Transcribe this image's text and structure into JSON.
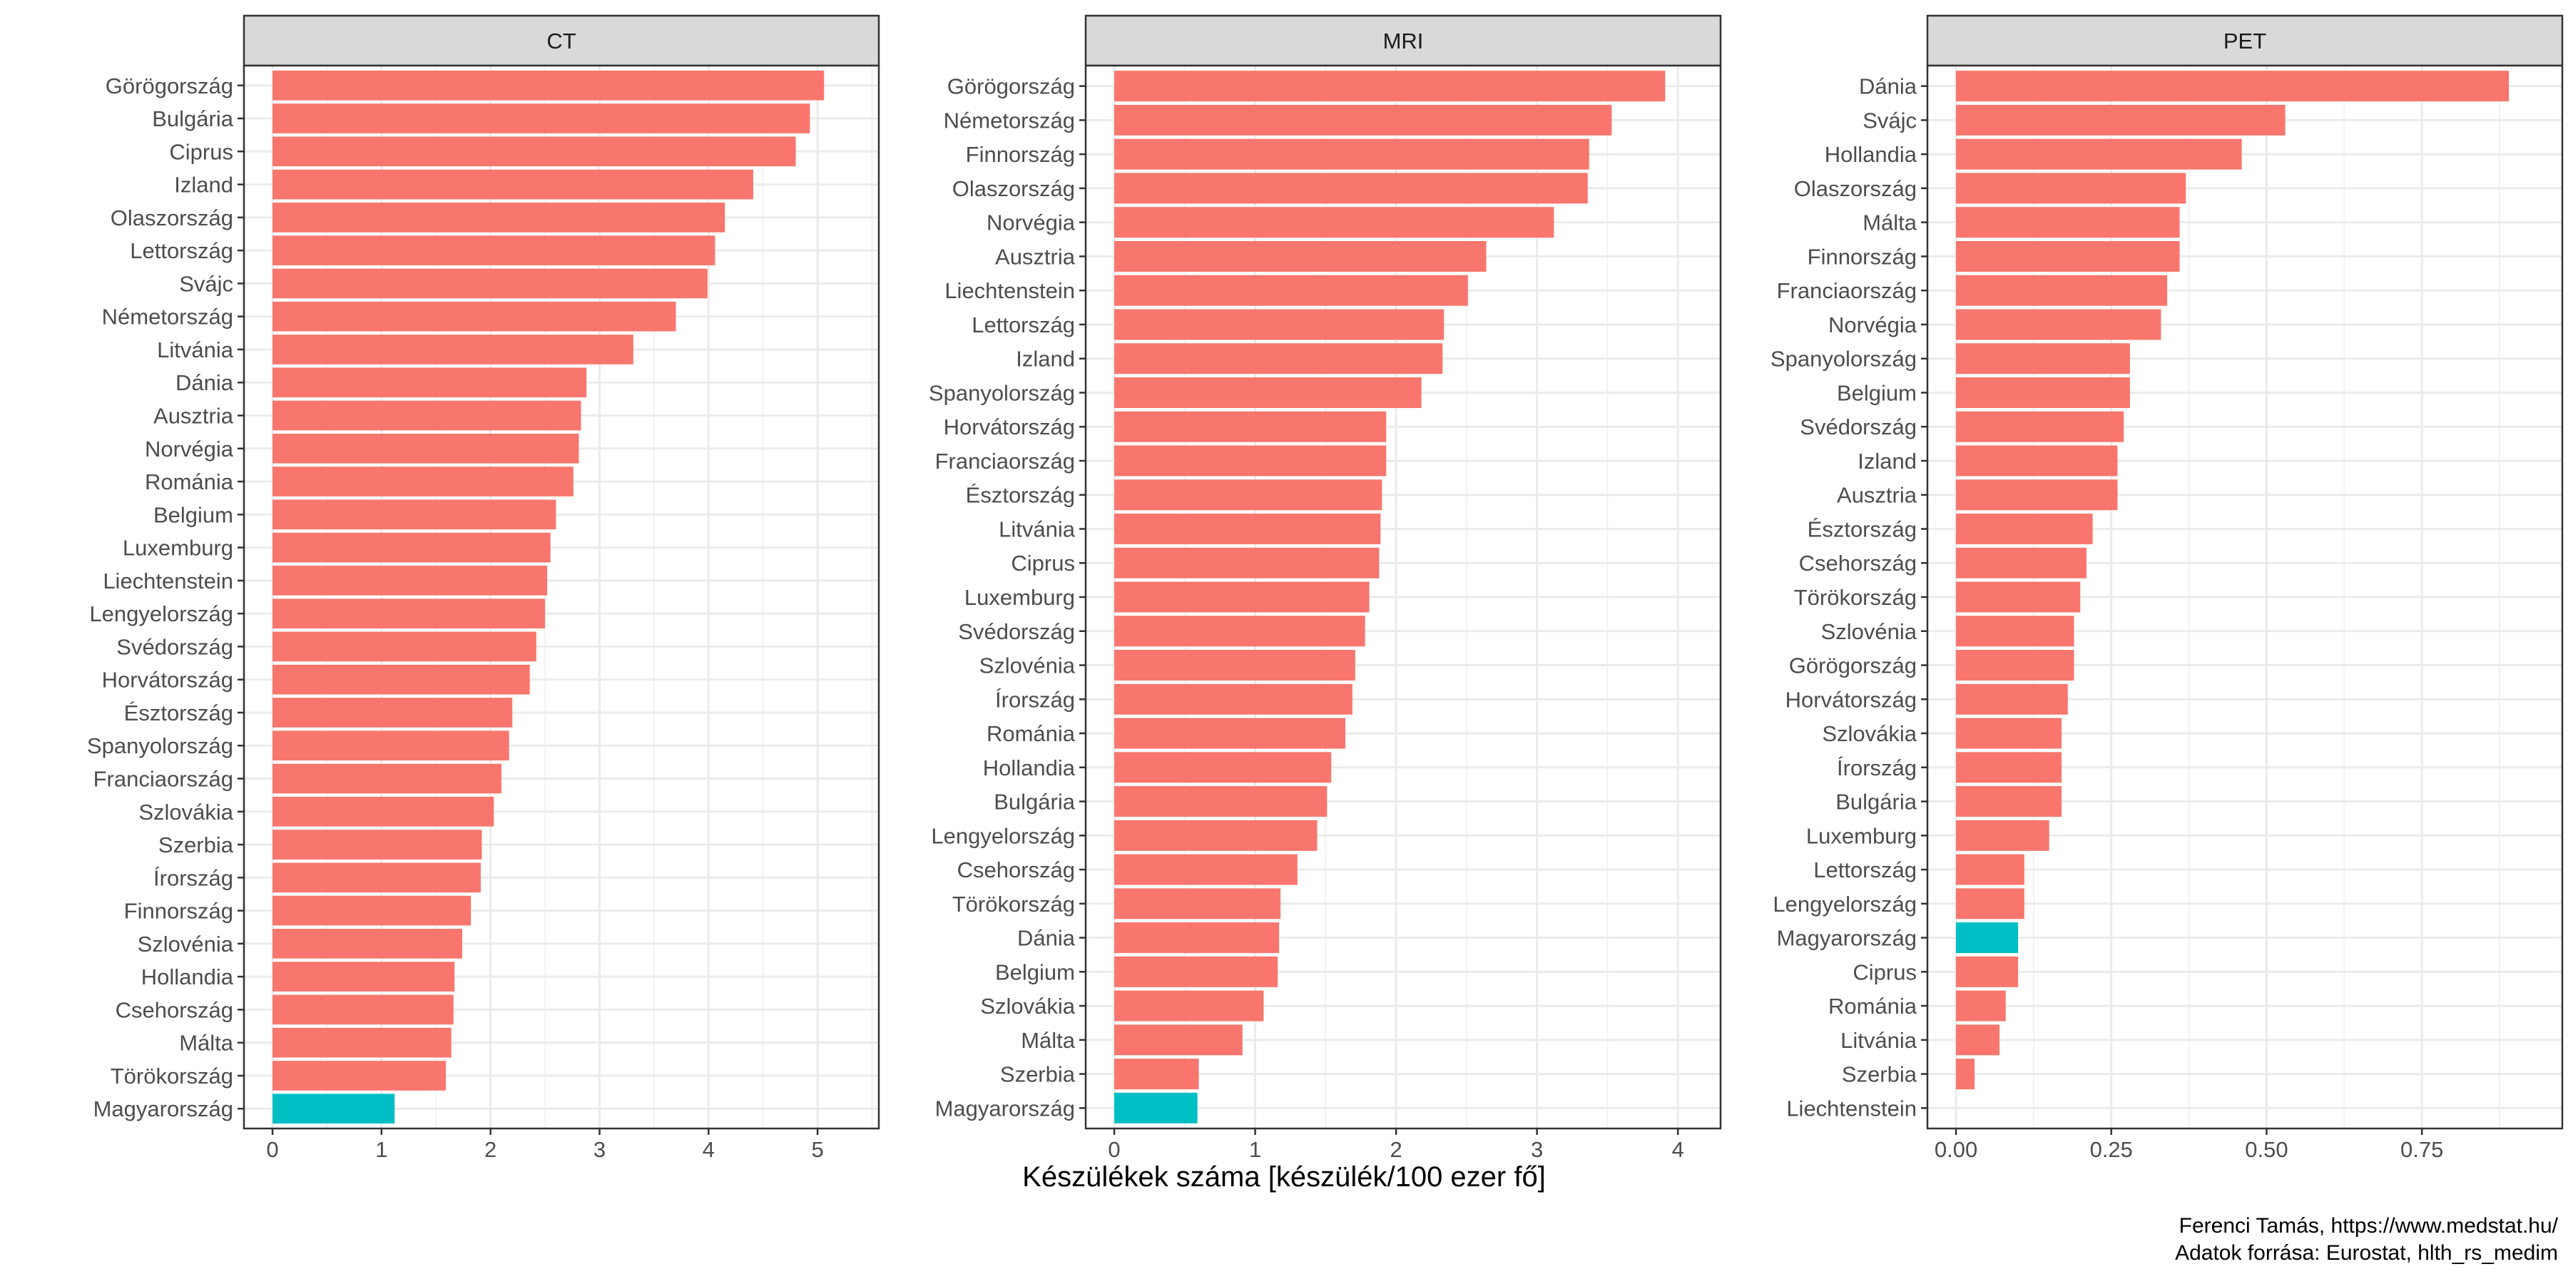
{
  "chart_data": {
    "type": "bar",
    "orientation": "horizontal",
    "xlabel": "Készülékek száma [készülék/100 ezer fő]",
    "colors": {
      "default": "#F8766D",
      "highlight": "#00BFC4"
    },
    "highlight_category": "Magyarország",
    "panels": [
      {
        "name": "CT",
        "xlim": [
          0,
          5.3
        ],
        "xticks": [
          0,
          1,
          2,
          3,
          4,
          5
        ],
        "xtick_labels": [
          "0",
          "1",
          "2",
          "3",
          "4",
          "5"
        ],
        "categories": [
          "Görögország",
          "Bulgária",
          "Ciprus",
          "Izland",
          "Olaszország",
          "Lettország",
          "Svájc",
          "Németország",
          "Litvánia",
          "Dánia",
          "Ausztria",
          "Norvégia",
          "Románia",
          "Belgium",
          "Luxemburg",
          "Liechtenstein",
          "Lengyelország",
          "Svédország",
          "Horvátország",
          "Észtország",
          "Spanyolország",
          "Franciaország",
          "Szlovákia",
          "Szerbia",
          "Írország",
          "Finnország",
          "Szlovénia",
          "Hollandia",
          "Csehország",
          "Málta",
          "Törökország",
          "Magyarország"
        ],
        "values": [
          5.06,
          4.93,
          4.8,
          4.41,
          4.15,
          4.06,
          3.99,
          3.7,
          3.31,
          2.88,
          2.83,
          2.81,
          2.76,
          2.6,
          2.55,
          2.52,
          2.5,
          2.42,
          2.36,
          2.2,
          2.17,
          2.1,
          2.03,
          1.92,
          1.91,
          1.82,
          1.74,
          1.67,
          1.66,
          1.64,
          1.59,
          1.12
        ]
      },
      {
        "name": "MRI",
        "xlim": [
          0,
          4.1
        ],
        "xticks": [
          0,
          1,
          2,
          3,
          4
        ],
        "xtick_labels": [
          "0",
          "1",
          "2",
          "3",
          "4"
        ],
        "categories": [
          "Görögország",
          "Németország",
          "Finnország",
          "Olaszország",
          "Norvégia",
          "Ausztria",
          "Liechtenstein",
          "Lettország",
          "Izland",
          "Spanyolország",
          "Horvátország",
          "Franciaország",
          "Észtország",
          "Litvánia",
          "Ciprus",
          "Luxemburg",
          "Svédország",
          "Szlovénia",
          "Írország",
          "Románia",
          "Hollandia",
          "Bulgária",
          "Lengyelország",
          "Csehország",
          "Törökország",
          "Dánia",
          "Belgium",
          "Szlovákia",
          "Málta",
          "Szerbia",
          "Magyarország"
        ],
        "values": [
          3.91,
          3.53,
          3.37,
          3.36,
          3.12,
          2.64,
          2.51,
          2.34,
          2.33,
          2.18,
          1.93,
          1.93,
          1.9,
          1.89,
          1.88,
          1.81,
          1.78,
          1.71,
          1.69,
          1.64,
          1.54,
          1.51,
          1.44,
          1.3,
          1.18,
          1.17,
          1.16,
          1.06,
          0.91,
          0.6,
          0.59
        ]
      },
      {
        "name": "PET",
        "xlim": [
          0,
          0.93
        ],
        "xticks": [
          0,
          0.25,
          0.5,
          0.75
        ],
        "xtick_labels": [
          "0.00",
          "0.25",
          "0.50",
          "0.75"
        ],
        "categories": [
          "Dánia",
          "Svájc",
          "Hollandia",
          "Olaszország",
          "Málta",
          "Finnország",
          "Franciaország",
          "Norvégia",
          "Spanyolország",
          "Belgium",
          "Svédország",
          "Izland",
          "Ausztria",
          "Észtország",
          "Csehország",
          "Törökország",
          "Szlovénia",
          "Görögország",
          "Horvátország",
          "Szlovákia",
          "Írország",
          "Bulgária",
          "Luxemburg",
          "Lettország",
          "Lengyelország",
          "Magyarország",
          "Ciprus",
          "Románia",
          "Litvánia",
          "Szerbia",
          "Liechtenstein"
        ],
        "values": [
          0.89,
          0.53,
          0.46,
          0.37,
          0.36,
          0.36,
          0.34,
          0.33,
          0.28,
          0.28,
          0.27,
          0.26,
          0.26,
          0.22,
          0.21,
          0.2,
          0.19,
          0.19,
          0.18,
          0.17,
          0.17,
          0.17,
          0.15,
          0.11,
          0.11,
          0.1,
          0.1,
          0.08,
          0.07,
          0.03,
          0
        ]
      }
    ]
  },
  "caption": {
    "author": "Ferenci Tamás, https://www.medstat.hu/",
    "source": "Adatok forrása: Eurostat, hlth_rs_medim"
  }
}
